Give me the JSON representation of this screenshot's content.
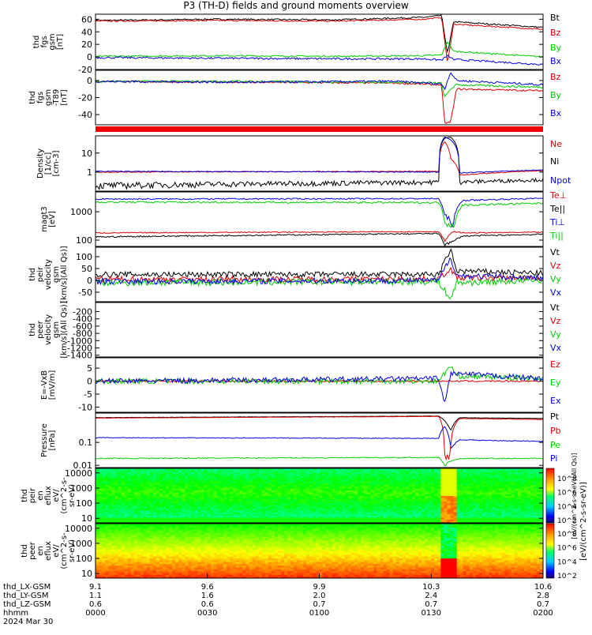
{
  "title": "P3 (TH-D) fields and ground moments overview",
  "colors": {
    "black": "#000000",
    "red": "#dd0000",
    "green": "#00cc00",
    "blue": "#0000dd"
  },
  "chart_data": [
    {
      "type": "line",
      "ylabel": [
        "thd",
        "fgs",
        "gsm",
        "[nT]"
      ],
      "ylim": [
        -20,
        68
      ],
      "yticks": [
        -20,
        0,
        20,
        40,
        60
      ],
      "series": [
        {
          "name": "Bt",
          "color": "#000000",
          "base": 60,
          "noise": 1.2,
          "x": [
            9.1,
            9.5,
            9.9,
            10.2,
            10.26,
            10.28,
            10.3,
            10.6
          ],
          "values": [
            58,
            60,
            59,
            63,
            66,
            5,
            56,
            47
          ]
        },
        {
          "name": "Bz",
          "color": "#dd0000",
          "base": 58,
          "noise": 1.0,
          "x": [
            9.1,
            9.5,
            9.9,
            10.2,
            10.26,
            10.28,
            10.3,
            10.6
          ],
          "values": [
            57,
            58,
            57,
            60,
            63,
            -10,
            52,
            44
          ]
        },
        {
          "name": "By",
          "color": "#00cc00",
          "base": 2,
          "noise": 1.2,
          "x": [
            9.1,
            9.5,
            9.9,
            10.2,
            10.26,
            10.28,
            10.3,
            10.6
          ],
          "values": [
            1,
            2,
            1,
            2,
            3,
            25,
            9,
            0
          ]
        },
        {
          "name": "Bx",
          "color": "#0000dd",
          "base": -2,
          "noise": 1.5,
          "x": [
            9.1,
            9.5,
            9.9,
            10.2,
            10.26,
            10.28,
            10.3,
            10.6
          ],
          "values": [
            -1,
            -2,
            -3,
            -3,
            -5,
            2,
            -4,
            -12
          ]
        }
      ]
    },
    {
      "type": "line",
      "ylabel": [
        "thd",
        "fgs",
        "gsm",
        "-T89",
        "[nT]"
      ],
      "ylim": [
        -52,
        12
      ],
      "yticks": [
        -40,
        -20,
        0
      ],
      "series": [
        {
          "name": "Bz",
          "color": "#dd0000",
          "base": -2,
          "noise": 1.0,
          "x": [
            9.1,
            9.6,
            10.1,
            10.26,
            10.27,
            10.29,
            10.31,
            10.6
          ],
          "values": [
            -1,
            -2,
            -3,
            -5,
            -50,
            -49,
            -10,
            -12
          ]
        },
        {
          "name": "By",
          "color": "#00cc00",
          "base": -1,
          "noise": 1.2,
          "x": [
            9.1,
            9.6,
            10.1,
            10.26,
            10.27,
            10.29,
            10.31,
            10.6
          ],
          "values": [
            -1,
            -1,
            -2,
            -3,
            -20,
            -10,
            -5,
            -8
          ]
        },
        {
          "name": "Bx",
          "color": "#0000dd",
          "base": -2,
          "noise": 1.3,
          "x": [
            9.1,
            9.6,
            10.1,
            10.26,
            10.27,
            10.29,
            10.31,
            10.6
          ],
          "values": [
            -1,
            -2,
            -1,
            -4,
            -10,
            10,
            0,
            -5
          ]
        }
      ]
    },
    {
      "type": "line",
      "ylabel": [
        "Density",
        "[1/cc]",
        "[cm-3]"
      ],
      "ylim": [
        0.1,
        80
      ],
      "log": true,
      "yticks": [
        1,
        10
      ],
      "series": [
        {
          "name": "Ne",
          "color": "#dd0000",
          "base": 1.1,
          "noise": 0.05,
          "x": [
            9.1,
            10.25,
            10.27,
            10.29,
            10.32,
            10.6
          ],
          "values": [
            1.0,
            1.1,
            40,
            5,
            0.7,
            1.2
          ]
        },
        {
          "name": "Ni",
          "color": "#000000",
          "base": 0.3,
          "noise": 0.08,
          "x": [
            9.1,
            10.25,
            10.27,
            10.29,
            10.32,
            10.6
          ],
          "values": [
            0.2,
            0.3,
            60,
            70,
            0.3,
            0.4
          ]
        },
        {
          "name": "Npot",
          "color": "#0000dd",
          "base": 1.0,
          "noise": 0.05,
          "x": [
            9.1,
            10.25,
            10.27,
            10.29,
            10.32,
            10.6
          ],
          "values": [
            1.1,
            1.0,
            70,
            50,
            0.9,
            1.3
          ]
        }
      ]
    },
    {
      "type": "line",
      "ylabel": [
        "magt3",
        "[eV]"
      ],
      "ylim": [
        60,
        5000
      ],
      "log": true,
      "yticks": [
        100,
        1000
      ],
      "series": [
        {
          "name": "Te⊥",
          "color": "#dd0000",
          "base": 170,
          "noise": 8,
          "x": [
            9.1,
            10.25,
            10.27,
            10.3,
            10.33,
            10.6
          ],
          "values": [
            180,
            200,
            90,
            200,
            180,
            190
          ]
        },
        {
          "name": "Te||",
          "color": "#000000",
          "base": 140,
          "noise": 8,
          "x": [
            9.1,
            10.25,
            10.27,
            10.3,
            10.33,
            10.6
          ],
          "values": [
            130,
            170,
            70,
            90,
            140,
            160
          ]
        },
        {
          "name": "Ti⊥",
          "color": "#0000dd",
          "base": 2700,
          "noise": 150,
          "x": [
            9.1,
            10.25,
            10.27,
            10.3,
            10.33,
            10.6
          ],
          "values": [
            2800,
            2900,
            700,
            400,
            2500,
            3000
          ]
        },
        {
          "name": "Ti||",
          "color": "#00cc00",
          "base": 2000,
          "noise": 150,
          "x": [
            9.1,
            10.25,
            10.27,
            10.3,
            10.33,
            10.6
          ],
          "values": [
            2200,
            2100,
            500,
            300,
            1700,
            2000
          ]
        }
      ]
    },
    {
      "type": "line",
      "ylabel": [
        "thd",
        "peir",
        "velocity",
        "gsm",
        "[km/s](All Qs)]"
      ],
      "ylim": [
        -90,
        140
      ],
      "yticks": [
        -50,
        0,
        50,
        100
      ],
      "series": [
        {
          "name": "Vt",
          "color": "#000000",
          "base": 25,
          "noise": 12,
          "x": [
            9.1,
            10.25,
            10.29,
            10.31,
            10.6
          ],
          "values": [
            25,
            25,
            130,
            40,
            30
          ]
        },
        {
          "name": "Vz",
          "color": "#dd0000",
          "base": 5,
          "noise": 12,
          "x": [
            9.1,
            10.25,
            10.29,
            10.31,
            10.6
          ],
          "values": [
            5,
            5,
            50,
            10,
            10
          ]
        },
        {
          "name": "Vy",
          "color": "#00cc00",
          "base": -5,
          "noise": 14,
          "x": [
            9.1,
            10.25,
            10.29,
            10.31,
            10.6
          ],
          "values": [
            -10,
            -5,
            -80,
            -10,
            0
          ]
        },
        {
          "name": "Vx",
          "color": "#0000dd",
          "base": 0,
          "noise": 12,
          "x": [
            9.1,
            10.25,
            10.29,
            10.31,
            10.6
          ],
          "values": [
            -5,
            0,
            100,
            20,
            10
          ]
        }
      ]
    },
    {
      "type": "line",
      "ylabel": [
        "thd",
        "peer",
        "velocity",
        "gsm",
        "[km/s](All Qs)]"
      ],
      "ylim": [
        -1450,
        50
      ],
      "yticks": [
        -1400,
        -1200,
        -1000,
        -800,
        -600,
        -400,
        -200
      ],
      "series": [
        {
          "name": "Vt",
          "color": "#000000",
          "x": [],
          "values": []
        },
        {
          "name": "Vz",
          "color": "#dd0000",
          "x": [],
          "values": []
        },
        {
          "name": "Vy",
          "color": "#00cc00",
          "x": [],
          "values": []
        },
        {
          "name": "Vx",
          "color": "#0000dd",
          "x": [],
          "values": []
        }
      ]
    },
    {
      "type": "line",
      "ylabel": [
        "E=-VxB",
        "[mV/m]"
      ],
      "ylim": [
        -12,
        9
      ],
      "yticks": [
        -10,
        -5,
        0,
        5
      ],
      "series": [
        {
          "name": "Ez",
          "color": "#dd0000",
          "base": 0,
          "noise": 0.3,
          "x": [
            9.2,
            10.25,
            10.3,
            10.6
          ],
          "values": [
            0,
            0,
            0,
            0
          ]
        },
        {
          "name": "Ey",
          "color": "#00cc00",
          "base": 0,
          "noise": 1.0,
          "x": [
            9.2,
            10.25,
            10.29,
            10.31,
            10.6
          ],
          "values": [
            0,
            0,
            6,
            2,
            1
          ]
        },
        {
          "name": "Ex",
          "color": "#0000dd",
          "base": 0,
          "noise": 1.0,
          "x": [
            9.2,
            10.25,
            10.27,
            10.29,
            10.6
          ],
          "values": [
            0,
            1,
            -9,
            3,
            1
          ]
        }
      ]
    },
    {
      "type": "line",
      "ylabel": [
        "Pressure",
        "[nPa]"
      ],
      "ylim": [
        0.008,
        1.9
      ],
      "log": true,
      "yticks": [
        0.01,
        0.1
      ],
      "series": [
        {
          "name": "Pt",
          "color": "#000000",
          "base": 1.3,
          "noise": 0.02,
          "x": [
            9.1,
            10.25,
            10.27,
            10.29,
            10.32,
            10.6
          ],
          "values": [
            1.2,
            1.4,
            0.9,
            0.3,
            1.2,
            1.1
          ]
        },
        {
          "name": "Pb",
          "color": "#dd0000",
          "base": 1.25,
          "noise": 0.02,
          "x": [
            9.1,
            10.25,
            10.27,
            10.29,
            10.32,
            10.6
          ],
          "values": [
            1.15,
            1.35,
            0.01,
            0.05,
            1.1,
            1.0
          ]
        },
        {
          "name": "Pe",
          "color": "#00cc00",
          "base": 0.022,
          "noise": 0.001,
          "x": [
            9.1,
            10.25,
            10.27,
            10.29,
            10.32,
            10.6
          ],
          "values": [
            0.02,
            0.022,
            0.01,
            0.015,
            0.02,
            0.02
          ]
        },
        {
          "name": "Pi",
          "color": "#0000dd",
          "base": 0.15,
          "noise": 0.005,
          "x": [
            9.1,
            10.25,
            10.27,
            10.29,
            10.32,
            10.6
          ],
          "values": [
            0.16,
            0.15,
            0.5,
            0.05,
            0.13,
            0.11
          ]
        }
      ]
    },
    {
      "type": "heatmap",
      "ylabel": [
        "thd",
        "peir",
        "en",
        "eflux",
        "eV/",
        "(cm^2-s-",
        "sr-eV)"
      ],
      "ylim": [
        5,
        20000
      ],
      "log": true,
      "yticks": [
        10,
        100,
        1000,
        10000
      ]
    },
    {
      "type": "heatmap",
      "ylabel": [
        "thd",
        "peer",
        "en",
        "eflux",
        "eV/",
        "(cm^2-s-",
        "sr-eV)"
      ],
      "ylim": [
        5,
        20000
      ],
      "log": true,
      "yticks": [
        10,
        100,
        1000,
        10000
      ]
    }
  ],
  "colorbar": {
    "label": "[eV/(cm^2-s-sr-eV)]",
    "label2": "[eV/(cm^2-s-sr-eV)(All Qs)]",
    "ticks": [
      "10^8",
      "10^6",
      "10^4",
      "10^2"
    ]
  },
  "xaxis": {
    "positions": [
      0,
      0.25,
      0.5,
      0.75,
      1.0
    ],
    "rows": [
      {
        "label": "thd_LX-GSM",
        "values": [
          "9.1",
          "9.6",
          "9.9",
          "10.3",
          "10.6"
        ]
      },
      {
        "label": "thd_LY-GSM",
        "values": [
          "1.1",
          "1.6",
          "2.0",
          "2.4",
          "2.8"
        ]
      },
      {
        "label": "thd_LZ-GSM",
        "values": [
          "0.6",
          "0.6",
          "0.7",
          "0.7",
          "0.7"
        ]
      },
      {
        "label": "hhmm",
        "values": [
          "0000",
          "0030",
          "0100",
          "0130",
          "0200"
        ]
      }
    ],
    "date": "2024 Mar 30"
  }
}
